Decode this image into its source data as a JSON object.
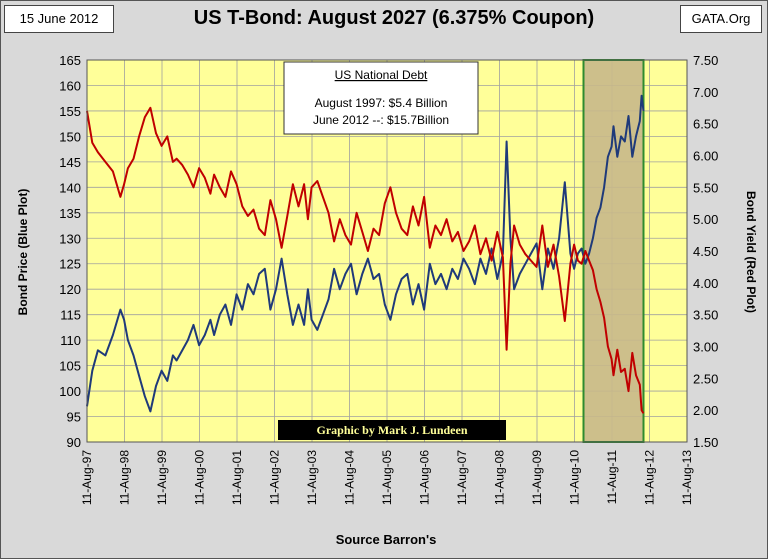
{
  "header": {
    "date": "15 June 2012",
    "source_tag": "GATA.Org"
  },
  "colors": {
    "price_line": "#1f3a7a",
    "yield_line": "#c00000",
    "plot_bg": "#ffff99",
    "highlight_fill": "#c8b88a",
    "highlight_border": "#2e8b2e",
    "outer_bg": "#d9d9d9"
  },
  "chart_data": {
    "type": "line",
    "title": "US T-Bond: August 2027 (6.375% Coupon)",
    "xlabel": "Source Barron's",
    "ylabel_left": "Bond Price (Blue Plot)",
    "ylabel_right": "Bond Yield (Red Plot)",
    "x_tick_labels": [
      "11-Aug-97",
      "11-Aug-98",
      "11-Aug-99",
      "11-Aug-00",
      "11-Aug-01",
      "11-Aug-02",
      "11-Aug-03",
      "11-Aug-04",
      "11-Aug-05",
      "11-Aug-06",
      "11-Aug-07",
      "11-Aug-08",
      "11-Aug-09",
      "11-Aug-10",
      "11-Aug-11",
      "11-Aug-12",
      "11-Aug-13"
    ],
    "xlim": [
      1997.61,
      2013.61
    ],
    "ylim_left": [
      90,
      165
    ],
    "ylim_right": [
      1.5,
      7.5
    ],
    "y_ticks_left": [
      90,
      95,
      100,
      105,
      110,
      115,
      120,
      125,
      130,
      135,
      140,
      145,
      150,
      155,
      160,
      165
    ],
    "y_ticks_right": [
      "1.50",
      "2.00",
      "2.50",
      "3.00",
      "3.50",
      "4.00",
      "4.50",
      "5.00",
      "5.50",
      "6.00",
      "6.50",
      "7.00",
      "7.50"
    ],
    "grid": true,
    "highlight_range": [
      2010.85,
      2012.45
    ],
    "annotation": {
      "heading": "US National Debt",
      "line1": "August 1997:  $5.4 Billion",
      "line2": "June 2012 --: $15.7Billion"
    },
    "credit": "Graphic by Mark J. Lundeen",
    "series": [
      {
        "name": "Bond Price",
        "axis": "left",
        "x": [
          1997.61,
          1997.75,
          1997.9,
          1998.1,
          1998.3,
          1998.5,
          1998.6,
          1998.7,
          1998.85,
          1999.0,
          1999.15,
          1999.3,
          1999.45,
          1999.6,
          1999.75,
          1999.9,
          2000.0,
          2000.15,
          2000.3,
          2000.45,
          2000.6,
          2000.75,
          2000.9,
          2001.0,
          2001.15,
          2001.3,
          2001.45,
          2001.6,
          2001.75,
          2001.9,
          2002.05,
          2002.2,
          2002.35,
          2002.5,
          2002.65,
          2002.8,
          2002.95,
          2003.1,
          2003.25,
          2003.4,
          2003.5,
          2003.6,
          2003.75,
          2003.9,
          2004.05,
          2004.2,
          2004.35,
          2004.5,
          2004.65,
          2004.8,
          2004.95,
          2005.1,
          2005.25,
          2005.4,
          2005.55,
          2005.7,
          2005.85,
          2006.0,
          2006.15,
          2006.3,
          2006.45,
          2006.6,
          2006.75,
          2006.9,
          2007.05,
          2007.2,
          2007.35,
          2007.5,
          2007.65,
          2007.8,
          2007.95,
          2008.1,
          2008.25,
          2008.4,
          2008.55,
          2008.7,
          2008.8,
          2008.9,
          2009.0,
          2009.15,
          2009.3,
          2009.45,
          2009.6,
          2009.75,
          2009.9,
          2010.05,
          2010.2,
          2010.35,
          2010.5,
          2010.6,
          2010.7,
          2010.8,
          2010.9,
          2011.0,
          2011.1,
          2011.2,
          2011.3,
          2011.4,
          2011.5,
          2011.6,
          2011.65,
          2011.75,
          2011.85,
          2011.95,
          2012.05,
          2012.15,
          2012.25,
          2012.35,
          2012.4,
          2012.45
        ],
        "y": [
          97,
          104,
          108,
          107,
          111,
          116,
          114,
          110,
          107,
          103,
          99,
          96,
          101,
          104,
          102,
          107,
          106,
          108,
          110,
          113,
          109,
          111,
          114,
          111,
          115,
          117,
          113,
          119,
          116,
          121,
          119,
          123,
          124,
          116,
          120,
          126,
          119,
          113,
          117,
          113,
          120,
          114,
          112,
          115,
          118,
          124,
          120,
          123,
          125,
          119,
          123,
          126,
          122,
          123,
          117,
          114,
          119,
          122,
          123,
          117,
          121,
          116,
          125,
          121,
          123,
          120,
          124,
          122,
          126,
          124,
          121,
          126,
          123,
          128,
          122,
          127,
          149,
          130,
          120,
          123,
          125,
          127,
          129,
          120,
          128,
          124,
          130,
          141,
          127,
          124,
          127,
          128,
          125,
          127,
          130,
          134,
          136,
          140,
          146,
          148,
          152,
          146,
          150,
          149,
          154,
          146,
          150,
          153,
          158,
          155
        ],
        "color": "#1f3a7a"
      },
      {
        "name": "Bond Yield",
        "axis": "right",
        "x": [
          1997.61,
          1997.75,
          1997.9,
          1998.1,
          1998.3,
          1998.5,
          1998.6,
          1998.7,
          1998.85,
          1999.0,
          1999.15,
          1999.3,
          1999.45,
          1999.6,
          1999.75,
          1999.9,
          2000.0,
          2000.15,
          2000.3,
          2000.45,
          2000.6,
          2000.75,
          2000.9,
          2001.0,
          2001.15,
          2001.3,
          2001.45,
          2001.6,
          2001.75,
          2001.9,
          2002.05,
          2002.2,
          2002.35,
          2002.5,
          2002.65,
          2002.8,
          2002.95,
          2003.1,
          2003.25,
          2003.4,
          2003.5,
          2003.6,
          2003.75,
          2003.9,
          2004.05,
          2004.2,
          2004.35,
          2004.5,
          2004.65,
          2004.8,
          2004.95,
          2005.1,
          2005.25,
          2005.4,
          2005.55,
          2005.7,
          2005.85,
          2006.0,
          2006.15,
          2006.3,
          2006.45,
          2006.6,
          2006.75,
          2006.9,
          2007.05,
          2007.2,
          2007.35,
          2007.5,
          2007.65,
          2007.8,
          2007.95,
          2008.1,
          2008.25,
          2008.4,
          2008.55,
          2008.7,
          2008.8,
          2008.9,
          2009.0,
          2009.15,
          2009.3,
          2009.45,
          2009.6,
          2009.75,
          2009.9,
          2010.05,
          2010.2,
          2010.35,
          2010.5,
          2010.6,
          2010.7,
          2010.8,
          2010.9,
          2011.0,
          2011.1,
          2011.2,
          2011.3,
          2011.4,
          2011.5,
          2011.6,
          2011.65,
          2011.75,
          2011.85,
          2011.95,
          2012.05,
          2012.15,
          2012.25,
          2012.35,
          2012.4,
          2012.45
        ],
        "y": [
          6.7,
          6.2,
          6.05,
          5.9,
          5.75,
          5.35,
          5.55,
          5.8,
          5.95,
          6.3,
          6.6,
          6.75,
          6.35,
          6.15,
          6.3,
          5.9,
          5.95,
          5.85,
          5.7,
          5.5,
          5.8,
          5.65,
          5.4,
          5.7,
          5.5,
          5.35,
          5.75,
          5.55,
          5.2,
          5.05,
          5.15,
          4.85,
          4.75,
          5.3,
          5.0,
          4.55,
          5.05,
          5.55,
          5.2,
          5.55,
          5.0,
          5.5,
          5.6,
          5.35,
          5.1,
          4.65,
          5.0,
          4.75,
          4.6,
          5.1,
          4.8,
          4.5,
          4.85,
          4.75,
          5.25,
          5.5,
          5.1,
          4.85,
          4.75,
          5.2,
          4.9,
          5.35,
          4.55,
          4.9,
          4.75,
          5.0,
          4.65,
          4.8,
          4.5,
          4.65,
          4.9,
          4.45,
          4.7,
          4.35,
          4.8,
          4.4,
          2.95,
          4.3,
          4.9,
          4.6,
          4.45,
          4.35,
          4.25,
          4.9,
          4.25,
          4.6,
          4.1,
          3.4,
          4.3,
          4.6,
          4.35,
          4.3,
          4.5,
          4.35,
          4.2,
          3.9,
          3.7,
          3.45,
          3.0,
          2.8,
          2.55,
          2.95,
          2.6,
          2.65,
          2.3,
          2.9,
          2.55,
          2.4,
          2.0,
          1.95
        ],
        "color": "#c00000"
      }
    ]
  }
}
